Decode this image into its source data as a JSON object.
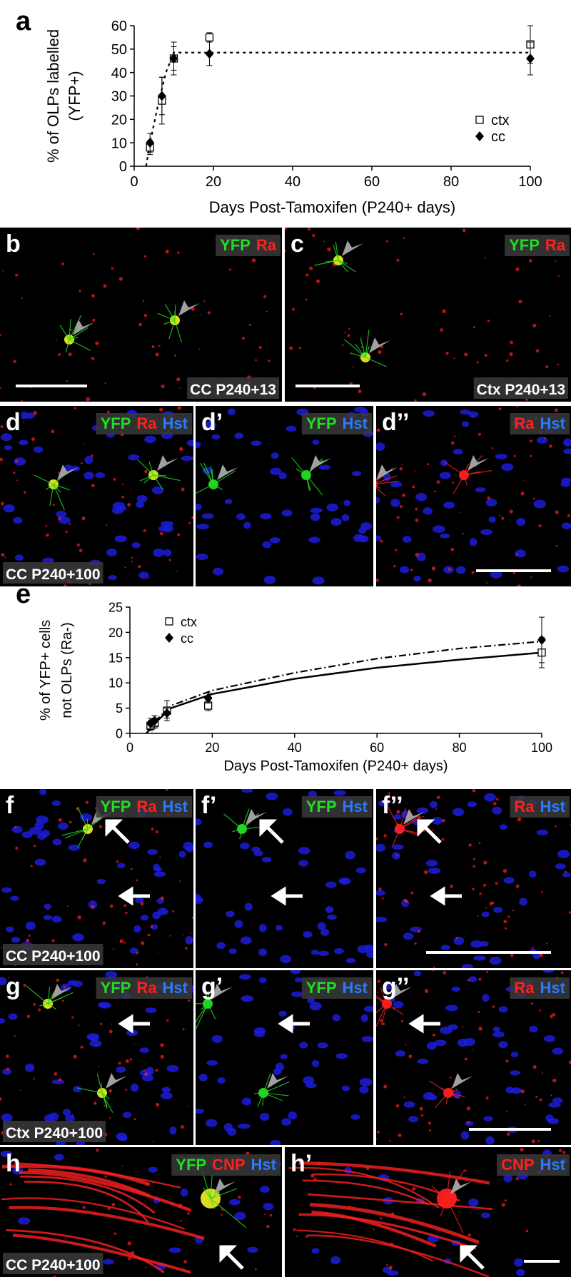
{
  "chart_data": [
    {
      "type": "scatter",
      "panel_label": "a",
      "xlabel": "Days Post-Tamoxifen (P240+ days)",
      "ylabel": [
        "% of OLPs labelled",
        "(YFP+)"
      ],
      "xlim": [
        0,
        100
      ],
      "xticks": [
        0,
        20,
        40,
        60,
        80,
        100
      ],
      "ylim": [
        0,
        60
      ],
      "yticks": [
        0,
        10,
        20,
        30,
        40,
        50,
        60
      ],
      "legend": "center right",
      "series": [
        {
          "name": "ctx",
          "marker": "square",
          "color": "#000000",
          "x": [
            4,
            7,
            10,
            19,
            100
          ],
          "values": [
            8,
            28,
            46,
            55,
            52
          ],
          "errors": [
            3,
            10,
            7,
            2,
            8
          ]
        },
        {
          "name": "cc",
          "marker": "diamond",
          "color": "#000000",
          "x": [
            4,
            7,
            10,
            19,
            100
          ],
          "values": [
            10,
            30,
            46,
            48,
            46
          ],
          "errors": [
            4,
            8,
            5,
            5,
            7
          ]
        }
      ],
      "fits": [
        {
          "style": "dashed",
          "x": [
            3,
            4,
            6,
            8,
            10,
            100
          ],
          "values": [
            0,
            10,
            26,
            40,
            48.5,
            48.5
          ]
        }
      ]
    },
    {
      "type": "scatter",
      "panel_label": "e",
      "xlabel": "Days Post-Tamoxifen (P240+ days)",
      "ylabel": [
        "% of YFP+ cells",
        "not OLPs (Ra-)"
      ],
      "xlim": [
        0,
        100
      ],
      "xticks": [
        0,
        20,
        40,
        60,
        80,
        100
      ],
      "ylim": [
        0,
        25
      ],
      "yticks": [
        0,
        5,
        10,
        15,
        20,
        25
      ],
      "legend": "upper left",
      "series": [
        {
          "name": "ctx",
          "marker": "square",
          "color": "#000000",
          "x": [
            5,
            6,
            9,
            19,
            100
          ],
          "values": [
            1.5,
            2,
            4.5,
            5.5,
            16
          ],
          "errors": [
            1,
            1,
            2,
            1,
            3
          ]
        },
        {
          "name": "cc",
          "marker": "diamond",
          "color": "#000000",
          "x": [
            5,
            6,
            9,
            19,
            100
          ],
          "values": [
            2,
            2.5,
            4,
            7,
            18.5
          ],
          "errors": [
            1,
            1,
            1,
            1,
            4.5
          ]
        }
      ],
      "fits": [
        {
          "style": "solid",
          "x": [
            4,
            6,
            10,
            20,
            40,
            60,
            80,
            100
          ],
          "values": [
            0,
            2,
            5,
            7.8,
            10.8,
            13,
            14.6,
            16
          ]
        },
        {
          "style": "dashdot",
          "x": [
            4,
            6,
            10,
            20,
            40,
            60,
            80,
            100
          ],
          "values": [
            0,
            2.3,
            5.5,
            8.5,
            12,
            14.8,
            16.8,
            18.2
          ]
        }
      ]
    }
  ],
  "panels": [
    {
      "label": "b",
      "channels": [
        {
          "text": "YFP",
          "color": "#22dd22"
        },
        {
          "text": "Ra",
          "color": "#ff2020"
        }
      ],
      "caption": "CC P240+13"
    },
    {
      "label": "c",
      "channels": [
        {
          "text": "YFP",
          "color": "#22dd22"
        },
        {
          "text": "Ra",
          "color": "#ff2020"
        }
      ],
      "caption": "Ctx P240+13"
    },
    {
      "label": "d",
      "channels": [
        {
          "text": "YFP",
          "color": "#22dd22"
        },
        {
          "text": "Ra",
          "color": "#ff2020"
        },
        {
          "text": "Hst",
          "color": "#2a7bff"
        }
      ],
      "caption": "CC P240+100"
    },
    {
      "label": "d’",
      "channels": [
        {
          "text": "YFP",
          "color": "#22dd22"
        },
        {
          "text": "Hst",
          "color": "#2a7bff"
        }
      ]
    },
    {
      "label": "d’’",
      "channels": [
        {
          "text": "Ra",
          "color": "#ff2020"
        },
        {
          "text": "Hst",
          "color": "#2a7bff"
        }
      ]
    },
    {
      "label": "f",
      "channels": [
        {
          "text": "YFP",
          "color": "#22dd22"
        },
        {
          "text": "Ra",
          "color": "#ff2020"
        },
        {
          "text": "Hst",
          "color": "#2a7bff"
        }
      ],
      "caption": "CC P240+100"
    },
    {
      "label": "f’",
      "channels": [
        {
          "text": "YFP",
          "color": "#22dd22"
        },
        {
          "text": "Hst",
          "color": "#2a7bff"
        }
      ]
    },
    {
      "label": "f’’",
      "channels": [
        {
          "text": "Ra",
          "color": "#ff2020"
        },
        {
          "text": "Hst",
          "color": "#2a7bff"
        }
      ]
    },
    {
      "label": "g",
      "channels": [
        {
          "text": "YFP",
          "color": "#22dd22"
        },
        {
          "text": "Ra",
          "color": "#ff2020"
        },
        {
          "text": "Hst",
          "color": "#2a7bff"
        }
      ],
      "caption": "Ctx P240+100"
    },
    {
      "label": "g’",
      "channels": [
        {
          "text": "YFP",
          "color": "#22dd22"
        },
        {
          "text": "Hst",
          "color": "#2a7bff"
        }
      ]
    },
    {
      "label": "g’’",
      "channels": [
        {
          "text": "Ra",
          "color": "#ff2020"
        },
        {
          "text": "Hst",
          "color": "#2a7bff"
        }
      ]
    },
    {
      "label": "h",
      "channels": [
        {
          "text": "YFP",
          "color": "#22dd22"
        },
        {
          "text": "CNP",
          "color": "#ff2020"
        },
        {
          "text": "Hst",
          "color": "#2a7bff"
        }
      ],
      "caption": "CC P240+100"
    },
    {
      "label": "h’",
      "channels": [
        {
          "text": "CNP",
          "color": "#ff2020"
        },
        {
          "text": "Hst",
          "color": "#2a7bff"
        }
      ]
    }
  ]
}
